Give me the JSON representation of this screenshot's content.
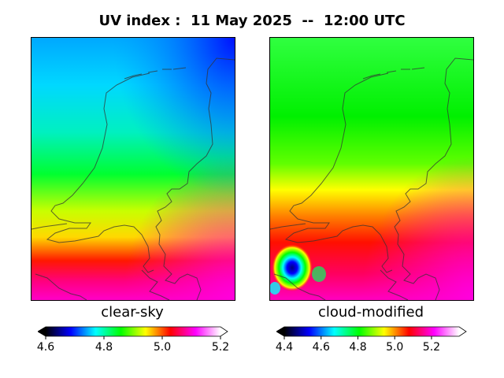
{
  "title": "UV index :  11 May 2025  --  12:00 UTC",
  "panels": [
    {
      "label": "clear-sky",
      "colorbar": {
        "min": 4.6,
        "max": 5.2,
        "ticks": [
          "4.6",
          "4.8",
          "5.0",
          "5.2"
        ]
      }
    },
    {
      "label": "cloud-modified",
      "colorbar": {
        "min": 4.4,
        "max": 5.35,
        "ticks": [
          "4.4",
          "4.6",
          "4.8",
          "5.0",
          "5.2"
        ]
      }
    }
  ],
  "colormap": [
    "#000000",
    "#0000ff",
    "#00ffff",
    "#00ff00",
    "#ffff00",
    "#ff0000",
    "#ff00ff",
    "#ffffff"
  ]
}
